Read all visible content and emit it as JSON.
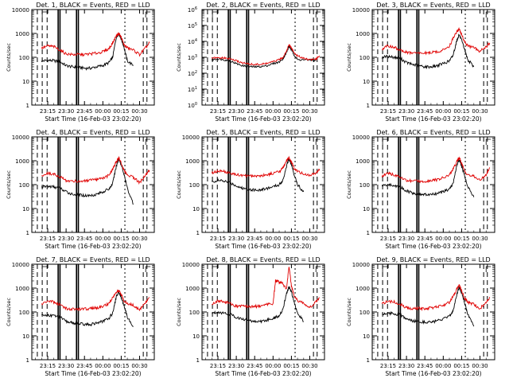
{
  "figure": {
    "xlabel": "Start Time (16-Feb-03 23:02:20)",
    "ylabel": "Counts/sec",
    "x_ticks": [
      "23:15",
      "23:30",
      "23:45",
      "00:00",
      "00:15",
      "00:30"
    ],
    "y_ticks": [
      "1",
      "10",
      "100",
      "1000",
      "10000"
    ],
    "y_ticks_exp": [
      "10",
      "10",
      "10",
      "10",
      "10",
      "10",
      "10"
    ],
    "y_ticks_exp_powers": [
      "0",
      "1",
      "2",
      "3",
      "4",
      "5",
      "6"
    ],
    "colors": {
      "events": "#000000",
      "lld": "#e00000",
      "axes": "#000000"
    }
  },
  "chart_data": [
    {
      "type": "line",
      "title": "Det. 1, BLACK = Events, RED = LLD",
      "xlabel": "Start Time (16-Feb-03 23:02:20)",
      "ylabel": "Counts/sec",
      "yscale": "log",
      "ylim": [
        1,
        10000
      ],
      "x": [
        "23:10",
        "23:15",
        "23:20",
        "23:25",
        "23:30",
        "23:35",
        "23:40",
        "23:45",
        "23:50",
        "23:55",
        "00:00",
        "00:05",
        "00:08",
        "00:11",
        "00:13",
        "00:15",
        "00:17",
        "00:20",
        "00:25",
        "00:30",
        "00:35",
        "00:38"
      ],
      "series": [
        {
          "name": "Events",
          "values": [
            70,
            75,
            72,
            65,
            45,
            40,
            38,
            35,
            35,
            40,
            45,
            60,
            100,
            700,
            1000,
            600,
            300,
            70,
            45,
            null,
            null,
            null
          ]
        },
        {
          "name": "LLD",
          "values": [
            240,
            300,
            280,
            200,
            140,
            130,
            130,
            130,
            140,
            150,
            170,
            230,
            400,
            800,
            1000,
            700,
            350,
            250,
            200,
            130,
            250,
            400
          ]
        }
      ]
    },
    {
      "type": "line",
      "title": "Det. 2, BLACK = Events, RED = LLD",
      "xlabel": "Start Time (16-Feb-03 23:02:20)",
      "ylabel": "Counts/sec",
      "yscale": "log",
      "ylim": [
        1,
        1000000
      ],
      "x": [
        "23:10",
        "23:15",
        "23:20",
        "23:25",
        "23:30",
        "23:35",
        "23:40",
        "23:45",
        "23:50",
        "23:55",
        "00:00",
        "00:05",
        "00:08",
        "00:11",
        "00:13",
        "00:15",
        "00:17",
        "00:20",
        "00:25",
        "00:30",
        "00:35",
        "00:38"
      ],
      "series": [
        {
          "name": "Events",
          "values": [
            700,
            800,
            700,
            600,
            400,
            300,
            260,
            250,
            260,
            300,
            400,
            500,
            800,
            2000,
            5000,
            3000,
            1500,
            700,
            700,
            700,
            600,
            null
          ]
        },
        {
          "name": "LLD",
          "values": [
            900,
            900,
            900,
            800,
            600,
            450,
            380,
            350,
            360,
            420,
            520,
            700,
            1000,
            2500,
            6000,
            4000,
            2000,
            1200,
            900,
            700,
            800,
            1200
          ]
        }
      ]
    },
    {
      "type": "line",
      "title": "Det. 3, BLACK = Events, RED = LLD",
      "xlabel": "Start Time (16-Feb-03 23:02:20)",
      "ylabel": "Counts/sec",
      "yscale": "log",
      "ylim": [
        1,
        10000
      ],
      "x": [
        "23:10",
        "23:15",
        "23:20",
        "23:25",
        "23:30",
        "23:35",
        "23:40",
        "23:45",
        "23:50",
        "23:55",
        "00:00",
        "00:05",
        "00:08",
        "00:11",
        "00:13",
        "00:15",
        "00:17",
        "00:20",
        "00:25",
        "00:30",
        "00:35",
        "00:38"
      ],
      "series": [
        {
          "name": "Events",
          "values": [
            100,
            110,
            100,
            90,
            60,
            50,
            45,
            40,
            40,
            45,
            55,
            70,
            120,
            500,
            900,
            500,
            250,
            80,
            40,
            null,
            null,
            null
          ]
        },
        {
          "name": "LLD",
          "values": [
            220,
            300,
            260,
            200,
            160,
            150,
            150,
            150,
            160,
            170,
            200,
            300,
            600,
            1200,
            1500,
            900,
            500,
            300,
            250,
            180,
            280,
            400
          ]
        }
      ]
    },
    {
      "type": "line",
      "title": "Det. 4, BLACK = Events, RED = LLD",
      "xlabel": "Start Time (16-Feb-03 23:02:20)",
      "ylabel": "Counts/sec",
      "yscale": "log",
      "ylim": [
        1,
        10000
      ],
      "x": [
        "23:10",
        "23:15",
        "23:20",
        "23:25",
        "23:30",
        "23:35",
        "23:40",
        "23:45",
        "23:50",
        "23:55",
        "00:00",
        "00:05",
        "00:08",
        "00:11",
        "00:13",
        "00:15",
        "00:17",
        "00:20",
        "00:25",
        "00:30",
        "00:35",
        "00:38"
      ],
      "series": [
        {
          "name": "Events",
          "values": [
            80,
            85,
            80,
            70,
            50,
            40,
            38,
            35,
            35,
            40,
            50,
            65,
            110,
            600,
            1200,
            700,
            300,
            70,
            15,
            null,
            null,
            null
          ]
        },
        {
          "name": "LLD",
          "values": [
            230,
            300,
            270,
            210,
            150,
            140,
            140,
            140,
            150,
            160,
            180,
            250,
            450,
            900,
            1300,
            800,
            400,
            260,
            200,
            120,
            250,
            400
          ]
        }
      ]
    },
    {
      "type": "line",
      "title": "Det. 5, BLACK = Events, RED = LLD",
      "xlabel": "Start Time (16-Feb-03 23:02:20)",
      "ylabel": "Counts/sec",
      "yscale": "log",
      "ylim": [
        1,
        10000
      ],
      "x": [
        "23:10",
        "23:15",
        "23:20",
        "23:25",
        "23:30",
        "23:35",
        "23:40",
        "23:45",
        "23:50",
        "23:55",
        "00:00",
        "00:05",
        "00:08",
        "00:11",
        "00:13",
        "00:15",
        "00:17",
        "00:20",
        "00:25",
        "00:30",
        "00:35",
        "00:38"
      ],
      "series": [
        {
          "name": "Events",
          "values": [
            130,
            150,
            140,
            120,
            90,
            70,
            65,
            60,
            60,
            70,
            80,
            100,
            150,
            600,
            1200,
            700,
            300,
            100,
            50,
            null,
            null,
            null
          ]
        },
        {
          "name": "LLD",
          "values": [
            300,
            380,
            350,
            300,
            260,
            240,
            230,
            230,
            240,
            260,
            300,
            350,
            500,
            1000,
            1300,
            900,
            500,
            350,
            280,
            250,
            300,
            450
          ]
        }
      ]
    },
    {
      "type": "line",
      "title": "Det. 6, BLACK = Events, RED = LLD",
      "xlabel": "Start Time (16-Feb-03 23:02:20)",
      "ylabel": "Counts/sec",
      "yscale": "log",
      "ylim": [
        1,
        10000
      ],
      "x": [
        "23:10",
        "23:15",
        "23:20",
        "23:25",
        "23:30",
        "23:35",
        "23:40",
        "23:45",
        "23:50",
        "23:55",
        "00:00",
        "00:05",
        "00:08",
        "00:11",
        "00:13",
        "00:15",
        "00:17",
        "00:20",
        "00:25",
        "00:30",
        "00:35",
        "00:38"
      ],
      "series": [
        {
          "name": "Events",
          "values": [
            90,
            100,
            90,
            80,
            55,
            45,
            40,
            38,
            38,
            42,
            50,
            65,
            110,
            600,
            1100,
            600,
            300,
            80,
            30,
            null,
            null,
            null
          ]
        },
        {
          "name": "LLD",
          "values": [
            220,
            300,
            260,
            200,
            150,
            140,
            140,
            140,
            150,
            160,
            190,
            250,
            450,
            900,
            1400,
            800,
            400,
            260,
            220,
            150,
            260,
            500
          ]
        }
      ]
    },
    {
      "type": "line",
      "title": "Det. 7, BLACK = Events, RED = LLD",
      "xlabel": "Start Time (16-Feb-03 23:02:20)",
      "ylabel": "Counts/sec",
      "yscale": "log",
      "ylim": [
        1,
        10000
      ],
      "x": [
        "23:10",
        "23:15",
        "23:20",
        "23:25",
        "23:30",
        "23:35",
        "23:40",
        "23:45",
        "23:50",
        "23:55",
        "00:00",
        "00:05",
        "00:08",
        "00:11",
        "00:13",
        "00:15",
        "00:17",
        "00:20",
        "00:25",
        "00:30",
        "00:35",
        "00:38"
      ],
      "series": [
        {
          "name": "Events",
          "values": [
            70,
            75,
            70,
            60,
            40,
            35,
            32,
            30,
            30,
            35,
            40,
            55,
            90,
            450,
            700,
            400,
            200,
            60,
            25,
            null,
            null,
            null
          ]
        },
        {
          "name": "LLD",
          "values": [
            220,
            280,
            260,
            200,
            140,
            130,
            130,
            130,
            140,
            150,
            170,
            230,
            400,
            700,
            800,
            550,
            300,
            230,
            190,
            120,
            250,
            400
          ]
        }
      ]
    },
    {
      "type": "line",
      "title": "Det. 8, BLACK = Events, RED = LLD",
      "xlabel": "Start Time (16-Feb-03 23:02:20)",
      "ylabel": "Counts/sec",
      "yscale": "log",
      "ylim": [
        1,
        10000
      ],
      "x": [
        "23:10",
        "23:15",
        "23:20",
        "23:25",
        "23:30",
        "23:35",
        "23:40",
        "23:45",
        "23:50",
        "23:55",
        "00:00",
        "00:02",
        "00:05",
        "00:08",
        "00:11",
        "00:13",
        "00:15",
        "00:17",
        "00:20",
        "00:25",
        "00:30",
        "00:35",
        "00:38"
      ],
      "series": [
        {
          "name": "Events",
          "values": [
            90,
            100,
            90,
            80,
            60,
            50,
            45,
            40,
            40,
            45,
            55,
            60,
            70,
            120,
            600,
            1100,
            700,
            300,
            90,
            40,
            null,
            null,
            null
          ]
        },
        {
          "name": "LLD",
          "values": [
            220,
            300,
            270,
            220,
            180,
            170,
            170,
            170,
            180,
            200,
            230,
            2000,
            1800,
            1500,
            900,
            8000,
            1200,
            500,
            300,
            230,
            150,
            260,
            400
          ]
        }
      ]
    },
    {
      "type": "line",
      "title": "Det. 9, BLACK = Events, RED = LLD",
      "xlabel": "Start Time (16-Feb-03 23:02:20)",
      "ylabel": "Counts/sec",
      "yscale": "log",
      "ylim": [
        1,
        10000
      ],
      "x": [
        "23:10",
        "23:15",
        "23:20",
        "23:25",
        "23:30",
        "23:35",
        "23:40",
        "23:45",
        "23:50",
        "23:55",
        "00:00",
        "00:05",
        "00:08",
        "00:11",
        "00:13",
        "00:15",
        "00:17",
        "00:20",
        "00:25",
        "00:30",
        "00:35",
        "00:38"
      ],
      "series": [
        {
          "name": "Events",
          "values": [
            80,
            90,
            85,
            75,
            50,
            42,
            40,
            38,
            38,
            42,
            50,
            65,
            110,
            550,
            1100,
            650,
            300,
            80,
            25,
            null,
            null,
            null
          ]
        },
        {
          "name": "LLD",
          "values": [
            220,
            290,
            260,
            210,
            150,
            140,
            140,
            140,
            150,
            160,
            190,
            250,
            450,
            900,
            1300,
            800,
            400,
            260,
            210,
            140,
            250,
            420
          ]
        }
      ]
    }
  ]
}
